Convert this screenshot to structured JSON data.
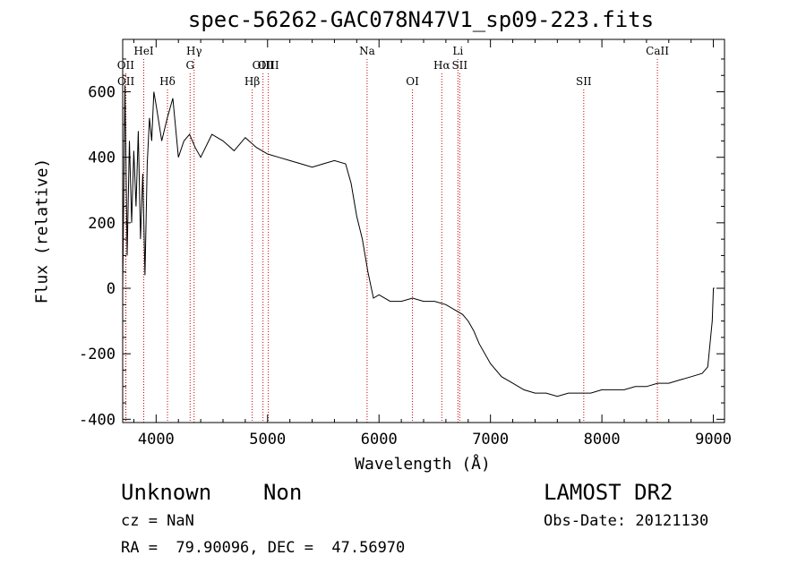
{
  "chart_data": {
    "type": "line",
    "title": "spec-56262-GAC078N47V1_sp09-223.fits",
    "xlabel": "Wavelength (Å)",
    "ylabel": "Flux (relative)",
    "xlim": [
      3700,
      9100
    ],
    "ylim": [
      -410,
      760
    ],
    "xticks": [
      4000,
      5000,
      6000,
      7000,
      8000,
      9000
    ],
    "yticks": [
      -400,
      -200,
      0,
      200,
      400,
      600
    ],
    "line_color": "#000000",
    "marker_color": "#cc0000",
    "lines": [
      {
        "label": "OII",
        "x": 3727,
        "row": 1
      },
      {
        "label": "OII",
        "x": 3729,
        "row": 2
      },
      {
        "label": "HeI",
        "x": 3889,
        "row": 0
      },
      {
        "label": "Hδ",
        "x": 4102,
        "row": 2
      },
      {
        "label": "Hγ",
        "x": 4341,
        "row": 0
      },
      {
        "label": "G",
        "x": 4305,
        "row": 1
      },
      {
        "label": "Hβ",
        "x": 4862,
        "row": 2
      },
      {
        "label": "OIII",
        "x": 4959,
        "row": 1
      },
      {
        "label": "OIII",
        "x": 5007,
        "row": 1
      },
      {
        "label": "Na",
        "x": 5893,
        "row": 0
      },
      {
        "label": "OI",
        "x": 6300,
        "row": 2
      },
      {
        "label": "Hα",
        "x": 6563,
        "row": 1
      },
      {
        "label": "Li",
        "x": 6708,
        "row": 0
      },
      {
        "label": "SII",
        "x": 6724,
        "row": 1
      },
      {
        "label": "SII",
        "x": 7837,
        "row": 2
      },
      {
        "label": "CaII",
        "x": 8498,
        "row": 0
      }
    ],
    "series": [
      {
        "x": [
          3700,
          3720,
          3740,
          3760,
          3780,
          3800,
          3820,
          3840,
          3860,
          3880,
          3900,
          3920,
          3940,
          3960,
          3980,
          4000,
          4050,
          4100,
          4150,
          4200,
          4250,
          4300,
          4350,
          4400,
          4500,
          4600,
          4700,
          4800,
          4900,
          5000,
          5100,
          5200,
          5300,
          5400,
          5500,
          5600,
          5700,
          5750,
          5800,
          5850,
          5900,
          5950,
          6000,
          6100,
          6200,
          6300,
          6400,
          6500,
          6600,
          6700,
          6750,
          6800,
          6850,
          6900,
          7000,
          7100,
          7200,
          7300,
          7400,
          7500,
          7600,
          7700,
          7800,
          7900,
          8000,
          8100,
          8200,
          8300,
          8400,
          8500,
          8600,
          8700,
          8800,
          8900,
          8950,
          8990,
          9000,
          9010
        ],
        "y": [
          0,
          620,
          100,
          450,
          200,
          420,
          250,
          480,
          150,
          350,
          40,
          380,
          520,
          450,
          600,
          560,
          450,
          520,
          580,
          400,
          450,
          470,
          430,
          400,
          470,
          450,
          420,
          460,
          430,
          410,
          400,
          390,
          380,
          370,
          380,
          390,
          380,
          320,
          220,
          150,
          50,
          -30,
          -20,
          -40,
          -40,
          -30,
          -40,
          -40,
          -50,
          -70,
          -80,
          -100,
          -130,
          -170,
          -230,
          -270,
          -290,
          -310,
          -320,
          -320,
          -330,
          -320,
          -320,
          -320,
          -310,
          -310,
          -310,
          -300,
          -300,
          -290,
          -290,
          -280,
          -270,
          -260,
          -240,
          -100,
          0,
          0
        ]
      }
    ]
  },
  "footer": {
    "name": "Unknown    Non",
    "cz": "cz = NaN",
    "radec": "RA =  79.90096, DEC =  47.56970",
    "survey": "LAMOST DR2",
    "obsdate": "Obs-Date: 20121130"
  }
}
